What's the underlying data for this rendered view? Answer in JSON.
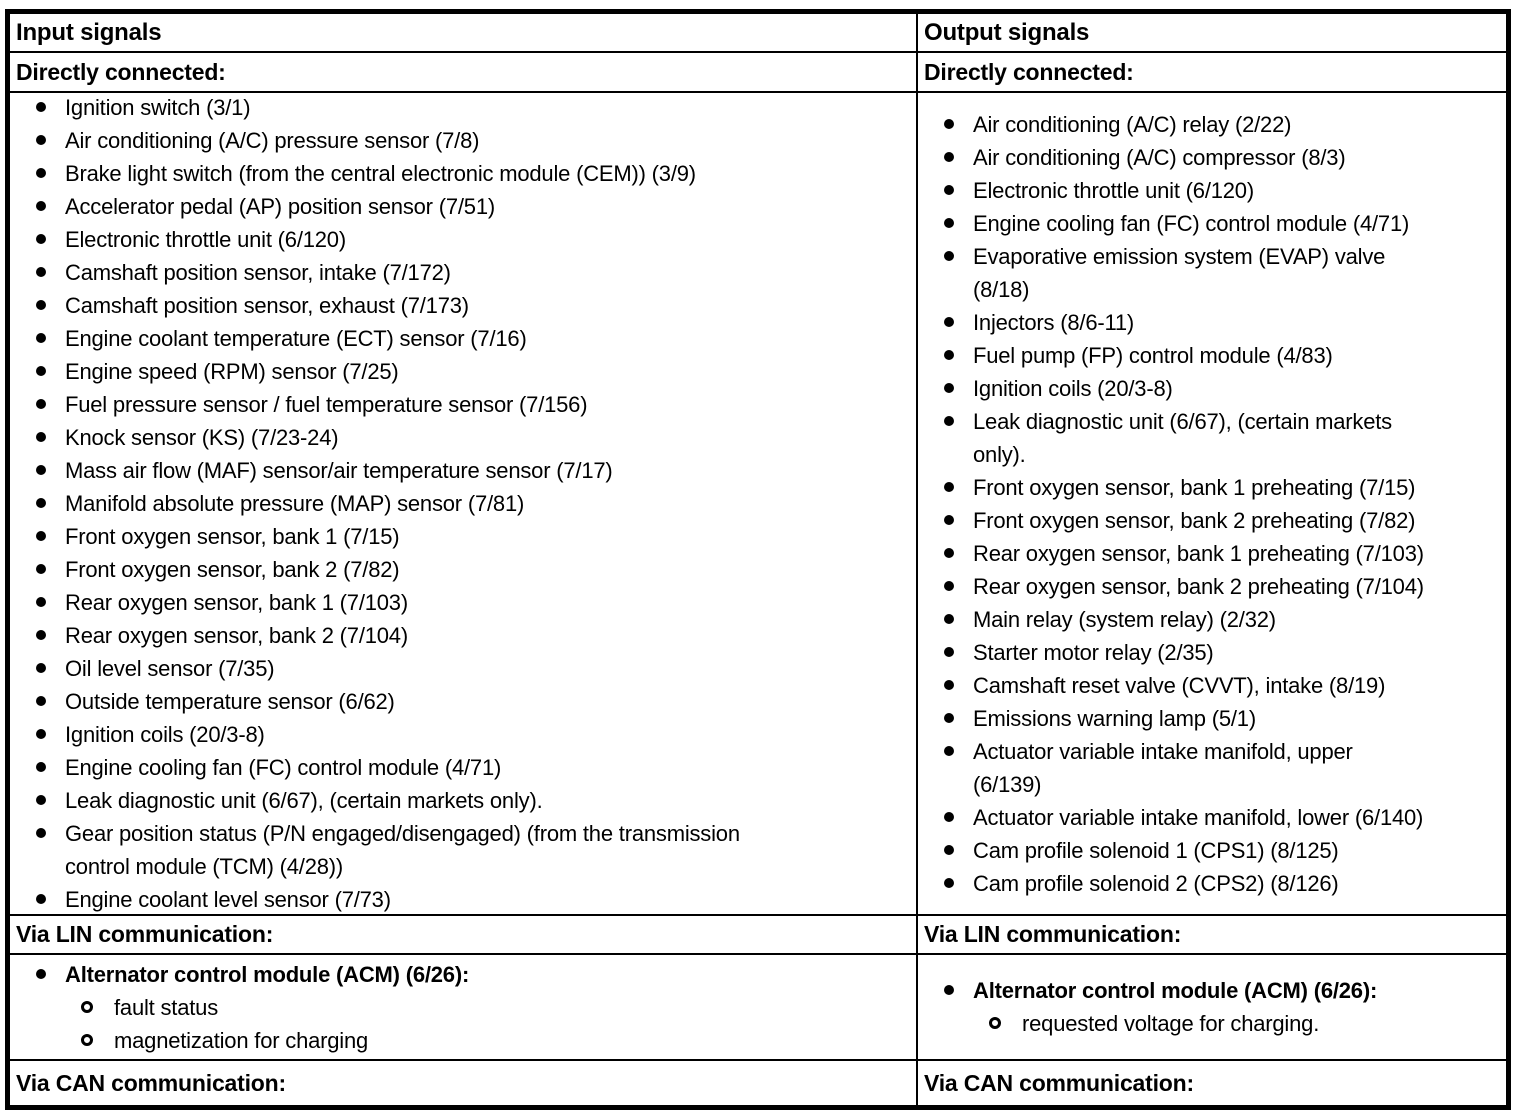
{
  "table": {
    "input": {
      "header": "Input signals",
      "directly_connected_label": "Directly connected:",
      "directly_connected": [
        "Ignition switch (3/1)",
        "Air conditioning (A/C) pressure sensor (7/8)",
        "Brake light switch (from the central electronic module (CEM)) (3/9)",
        "Accelerator pedal (AP) position sensor (7/51)",
        "Electronic throttle unit (6/120)",
        "Camshaft position sensor, intake (7/172)",
        "Camshaft position sensor, exhaust (7/173)",
        "Engine coolant temperature (ECT) sensor (7/16)",
        "Engine speed (RPM) sensor (7/25)",
        "Fuel pressure sensor / fuel temperature sensor (7/156)",
        "Knock sensor (KS) (7/23-24)",
        "Mass air flow (MAF) sensor/air temperature sensor (7/17)",
        "Manifold absolute pressure (MAP) sensor (7/81)",
        "Front oxygen sensor, bank 1 (7/15)",
        "Front oxygen sensor, bank 2 (7/82)",
        "Rear oxygen sensor, bank 1 (7/103)",
        "Rear oxygen sensor, bank 2 (7/104)",
        "Oil level sensor (7/35)",
        "Outside temperature sensor (6/62)",
        "Ignition coils (20/3-8)",
        "Engine cooling fan (FC) control module (4/71)",
        "Leak diagnostic unit (6/67), (certain markets only).",
        "Gear position status (P/N engaged/disengaged) (from the transmission\ncontrol module (TCM) (4/28))",
        "Engine coolant level sensor (7/73)"
      ],
      "via_lin_label": "Via LIN communication:",
      "via_lin": [
        {
          "label": "Alternator control module (ACM) (6/26):",
          "bold": true,
          "subitems": [
            "fault status",
            "magnetization for charging"
          ]
        }
      ],
      "via_can_label": "Via CAN communication:"
    },
    "output": {
      "header": "Output signals",
      "directly_connected_label": "Directly connected:",
      "directly_connected": [
        "Air conditioning (A/C) relay (2/22)",
        "Air conditioning (A/C) compressor (8/3)",
        "Electronic throttle unit (6/120)",
        "Engine cooling fan (FC) control module (4/71)",
        "Evaporative emission system (EVAP) valve\n(8/18)",
        "Injectors (8/6-11)",
        "Fuel pump (FP) control module (4/83)",
        "Ignition coils (20/3-8)",
        "Leak diagnostic unit (6/67), (certain markets\nonly).",
        "Front oxygen sensor, bank 1 preheating (7/15)",
        "Front oxygen sensor, bank 2 preheating (7/82)",
        "Rear oxygen sensor, bank 1 preheating (7/103)",
        "Rear oxygen sensor, bank 2 preheating (7/104)",
        "Main relay (system relay) (2/32)",
        "Starter motor relay (2/35)",
        "Camshaft reset valve (CVVT), intake (8/19)",
        "Emissions warning lamp (5/1)",
        "Actuator variable intake manifold, upper\n(6/139)",
        "Actuator variable intake manifold, lower (6/140)",
        "Cam profile solenoid 1 (CPS1) (8/125)",
        "Cam profile solenoid 2 (CPS2) (8/126)"
      ],
      "via_lin_label": "Via LIN communication:",
      "via_lin": [
        {
          "label": "Alternator control module (ACM) (6/26):",
          "bold": true,
          "subitems": [
            "requested voltage for charging."
          ]
        }
      ],
      "via_can_label": "Via CAN communication:"
    }
  },
  "colors": {
    "text": "#000000",
    "background": "#ffffff",
    "border": "#000000"
  }
}
